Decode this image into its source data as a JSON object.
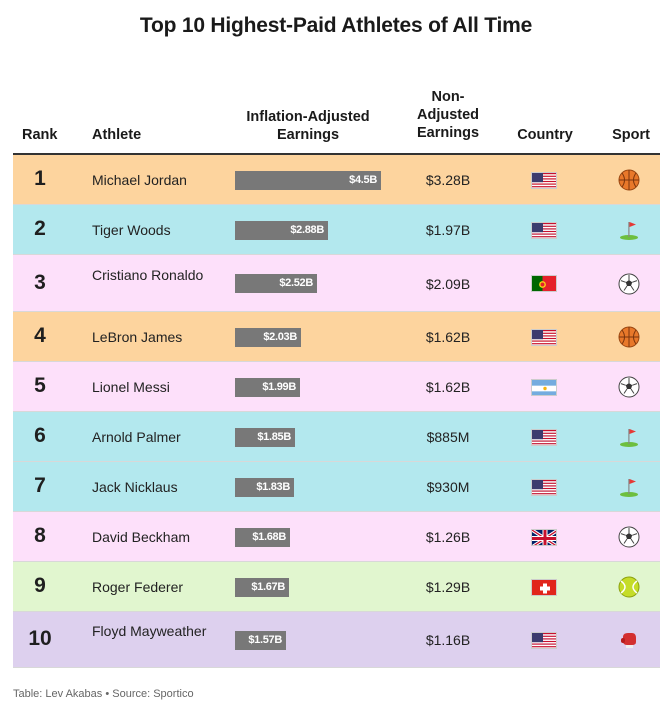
{
  "title": "Top 10 Highest-Paid Athletes of All Time",
  "headers": {
    "rank": "Rank",
    "athlete": "Athlete",
    "inflation_adjusted": "Inflation-Adjusted Earnings",
    "non_adjusted": "Non-Adjusted Earnings",
    "country": "Country",
    "sport": "Sport"
  },
  "footer": "Table: Lev Akabas • Source: Sportico",
  "colors": {
    "basketball": "#fdd49e",
    "golf": "#b3e8ee",
    "soccer": "#fde0fa",
    "tennis": "#e1f6cf",
    "boxing": "#ddd0ee",
    "bar": "#787878"
  },
  "chart_data": {
    "type": "table",
    "title": "Top 10 Highest-Paid Athletes of All Time",
    "columns": [
      "Rank",
      "Athlete",
      "Inflation-Adjusted Earnings",
      "Non-Adjusted Earnings",
      "Country",
      "Sport"
    ],
    "bar_column": "Inflation-Adjusted Earnings",
    "bar_max": 4.5,
    "rows": [
      {
        "rank": "1",
        "athlete": "Michael Jordan",
        "inflation_adjusted": 4.5,
        "inflation_label": "$4.5B",
        "non_adjusted": "$3.28B",
        "country": "usa",
        "sport": "basketball"
      },
      {
        "rank": "2",
        "athlete": "Tiger Woods",
        "inflation_adjusted": 2.88,
        "inflation_label": "$2.88B",
        "non_adjusted": "$1.97B",
        "country": "usa",
        "sport": "golf"
      },
      {
        "rank": "3",
        "athlete": "Cristiano Ronaldo",
        "inflation_adjusted": 2.52,
        "inflation_label": "$2.52B",
        "non_adjusted": "$2.09B",
        "country": "portugal",
        "sport": "soccer"
      },
      {
        "rank": "4",
        "athlete": "LeBron James",
        "inflation_adjusted": 2.03,
        "inflation_label": "$2.03B",
        "non_adjusted": "$1.62B",
        "country": "usa",
        "sport": "basketball"
      },
      {
        "rank": "5",
        "athlete": "Lionel Messi",
        "inflation_adjusted": 1.99,
        "inflation_label": "$1.99B",
        "non_adjusted": "$1.62B",
        "country": "argentina",
        "sport": "soccer"
      },
      {
        "rank": "6",
        "athlete": "Arnold Palmer",
        "inflation_adjusted": 1.85,
        "inflation_label": "$1.85B",
        "non_adjusted": "$885M",
        "country": "usa",
        "sport": "golf"
      },
      {
        "rank": "7",
        "athlete": "Jack Nicklaus",
        "inflation_adjusted": 1.83,
        "inflation_label": "$1.83B",
        "non_adjusted": "$930M",
        "country": "usa",
        "sport": "golf"
      },
      {
        "rank": "8",
        "athlete": "David Beckham",
        "inflation_adjusted": 1.68,
        "inflation_label": "$1.68B",
        "non_adjusted": "$1.26B",
        "country": "uk",
        "sport": "soccer"
      },
      {
        "rank": "9",
        "athlete": "Roger Federer",
        "inflation_adjusted": 1.67,
        "inflation_label": "$1.67B",
        "non_adjusted": "$1.29B",
        "country": "switzerland",
        "sport": "tennis"
      },
      {
        "rank": "10",
        "athlete": "Floyd Mayweather",
        "inflation_adjusted": 1.57,
        "inflation_label": "$1.57B",
        "non_adjusted": "$1.16B",
        "country": "usa",
        "sport": "boxing"
      }
    ]
  }
}
